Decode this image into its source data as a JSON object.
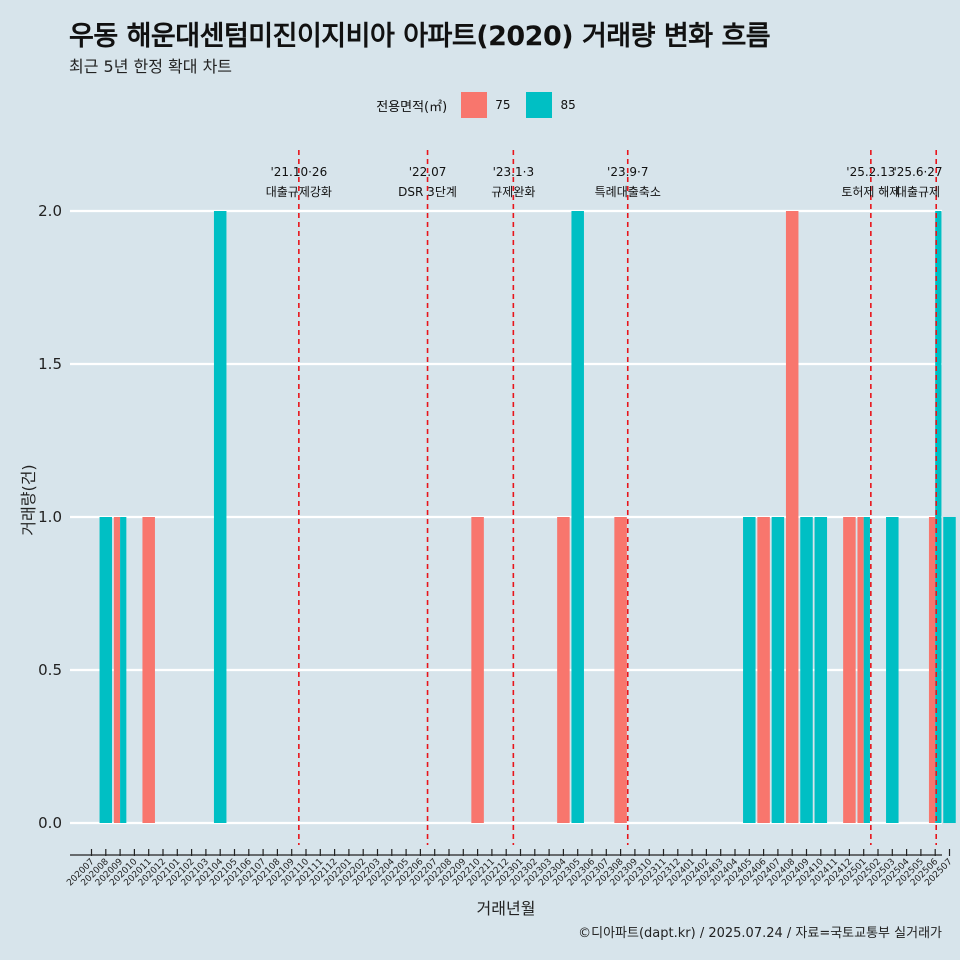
{
  "title": "우동 해운대센텀미진이지비아 아파트(2020) 거래량 변화 흐름",
  "subtitle": "최근 5년 한정 확대 차트",
  "caption": "©디아파트(dapt.kr) / 2025.07.24 / 자료=국토교통부 실거래가",
  "colors": {
    "s75": "#f8766d",
    "s85": "#00bfc4",
    "background": "#d7e4eb",
    "grid": "#ffffff",
    "event_line": "#e8141b"
  },
  "legend": {
    "title": "전용면적(㎡)",
    "items": [
      {
        "label": "75",
        "color": "#f8766d"
      },
      {
        "label": "85",
        "color": "#00bfc4"
      }
    ]
  },
  "chart_data": {
    "type": "bar",
    "xlabel": "거래년월",
    "ylabel": "거래량(건)",
    "ylim": [
      0,
      2
    ],
    "yticks": [
      "0.0",
      "0.5",
      "1.0",
      "1.5",
      "2.0"
    ],
    "grid": true,
    "legend_position": "top",
    "categories": [
      "202007",
      "202008",
      "202009",
      "202010",
      "202011",
      "202012",
      "202101",
      "202102",
      "202103",
      "202104",
      "202105",
      "202106",
      "202107",
      "202108",
      "202109",
      "202110",
      "202111",
      "202112",
      "202201",
      "202202",
      "202203",
      "202204",
      "202205",
      "202206",
      "202207",
      "202208",
      "202209",
      "202210",
      "202211",
      "202212",
      "202301",
      "202302",
      "202303",
      "202304",
      "202305",
      "202306",
      "202307",
      "202308",
      "202309",
      "202310",
      "202311",
      "202312",
      "202401",
      "202402",
      "202403",
      "202404",
      "202405",
      "202406",
      "202407",
      "202408",
      "202409",
      "202410",
      "202411",
      "202412",
      "202501",
      "202502",
      "202503",
      "202504",
      "202505",
      "202506",
      "202507"
    ],
    "series": [
      {
        "name": "75",
        "values": [
          0,
          0,
          1,
          0,
          1,
          0,
          0,
          0,
          0,
          0,
          0,
          0,
          0,
          0,
          0,
          0,
          0,
          0,
          0,
          0,
          0,
          0,
          0,
          0,
          0,
          0,
          0,
          1,
          0,
          0,
          0,
          0,
          0,
          1,
          0,
          0,
          0,
          1,
          0,
          0,
          0,
          0,
          0,
          0,
          0,
          0,
          0,
          1,
          0,
          2,
          0,
          0,
          0,
          1,
          1,
          0,
          0,
          0,
          0,
          1,
          0
        ]
      },
      {
        "name": "85",
        "values": [
          0,
          1,
          1,
          0,
          0,
          0,
          0,
          0,
          0,
          2,
          0,
          0,
          0,
          0,
          0,
          0,
          0,
          0,
          0,
          0,
          0,
          0,
          0,
          0,
          0,
          0,
          0,
          0,
          0,
          0,
          0,
          0,
          0,
          0,
          2,
          0,
          0,
          0,
          0,
          0,
          0,
          0,
          0,
          0,
          0,
          0,
          1,
          0,
          1,
          0,
          1,
          1,
          0,
          0,
          1,
          0,
          1,
          0,
          0,
          2,
          1
        ]
      }
    ],
    "events": [
      {
        "date": "'21.10·26",
        "label": "대출규제강화",
        "category": "202110"
      },
      {
        "date": "'22.07",
        "label": "DSR 3단계",
        "category": "202207"
      },
      {
        "date": "'23.1·3",
        "label": "규제완화",
        "category": "202301"
      },
      {
        "date": "'23.9·7",
        "label": "특례대출축소",
        "category": "202309"
      },
      {
        "date": "'25.2.13",
        "label": "토허제 해제",
        "category": "202502"
      },
      {
        "date": "'25.6·27",
        "label": "대출규제",
        "category": "202506"
      }
    ]
  }
}
